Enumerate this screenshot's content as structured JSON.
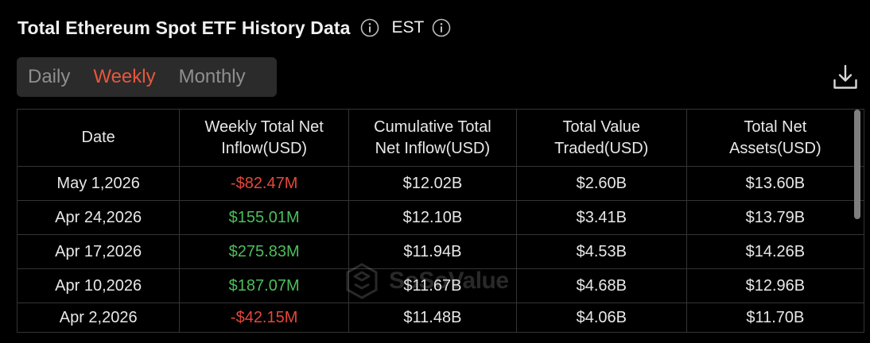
{
  "header": {
    "title": "Total Ethereum Spot ETF History Data",
    "timezone": "EST",
    "info_icon": "info-circle-icon"
  },
  "tabs": [
    {
      "label": "Daily",
      "active": false
    },
    {
      "label": "Weekly",
      "active": true
    },
    {
      "label": "Monthly",
      "active": false
    }
  ],
  "toolbar": {
    "download_icon": "download-icon"
  },
  "table": {
    "headers": [
      [
        "Date"
      ],
      [
        "Weekly Total Net",
        "Inflow(USD)"
      ],
      [
        "Cumulative Total",
        "Net Inflow(USD)"
      ],
      [
        "Total Value",
        "Traded(USD)"
      ],
      [
        "Total Net",
        "Assets(USD)"
      ]
    ],
    "rows": [
      {
        "date": "May 1,2026",
        "weekly_net_inflow": "-$82.47M",
        "cumulative_net_inflow": "$12.02B",
        "total_value_traded": "$2.60B",
        "total_net_assets": "$13.60B"
      },
      {
        "date": "Apr 24,2026",
        "weekly_net_inflow": "$155.01M",
        "cumulative_net_inflow": "$12.10B",
        "total_value_traded": "$3.41B",
        "total_net_assets": "$13.79B"
      },
      {
        "date": "Apr 17,2026",
        "weekly_net_inflow": "$275.83M",
        "cumulative_net_inflow": "$11.94B",
        "total_value_traded": "$4.53B",
        "total_net_assets": "$14.26B"
      },
      {
        "date": "Apr 10,2026",
        "weekly_net_inflow": "$187.07M",
        "cumulative_net_inflow": "$11.67B",
        "total_value_traded": "$4.68B",
        "total_net_assets": "$12.96B"
      },
      {
        "date": "Apr 2,2026",
        "weekly_net_inflow": "-$42.15M",
        "cumulative_net_inflow": "$11.48B",
        "total_value_traded": "$4.06B",
        "total_net_assets": "$11.70B"
      }
    ]
  },
  "watermark": {
    "text": "SoSoValue"
  },
  "colors": {
    "accent": "#e8573e",
    "positive": "#4cbe5c",
    "negative": "#e5473a",
    "background": "#000000",
    "tab_bar": "#2b2b2b"
  }
}
